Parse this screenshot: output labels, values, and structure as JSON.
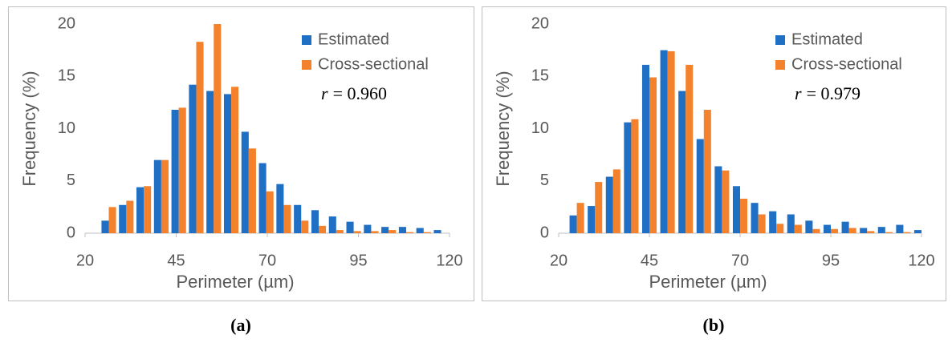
{
  "chart_data": [
    {
      "type": "bar",
      "caption": "(a)",
      "xlabel": "Perimeter (µm)",
      "ylabel": "Frequency (%)",
      "xlim": [
        20,
        120
      ],
      "xticks": [
        20,
        45,
        70,
        95,
        120
      ],
      "ylim": [
        0,
        20
      ],
      "yticks": [
        0,
        5,
        10,
        15,
        20
      ],
      "legend": "top-right",
      "annotation": {
        "symbol": "r",
        "text": "= 0.960"
      },
      "x": [
        26.5,
        31.3,
        36.1,
        40.9,
        45.7,
        50.5,
        55.3,
        60.1,
        64.9,
        69.7,
        74.5,
        79.3,
        84.1,
        88.9,
        93.7,
        98.5,
        103.3,
        108.1,
        112.9,
        117.7
      ],
      "series": [
        {
          "name": "Estimated",
          "color": "#1f6fc5",
          "values": [
            1.2,
            2.7,
            4.4,
            7.0,
            11.8,
            14.2,
            13.6,
            13.3,
            9.7,
            6.7,
            4.7,
            2.7,
            2.2,
            1.6,
            1.1,
            0.8,
            0.6,
            0.6,
            0.5,
            0.3
          ]
        },
        {
          "name": "Cross-sectional",
          "color": "#f4812c",
          "values": [
            2.5,
            3.1,
            4.5,
            7.0,
            12.0,
            18.3,
            20.0,
            14.0,
            8.1,
            4.0,
            2.7,
            1.2,
            0.7,
            0.3,
            0.2,
            0.2,
            0.3,
            0.1,
            0.1,
            0
          ]
        }
      ]
    },
    {
      "type": "bar",
      "caption": "(b)",
      "xlabel": "Perimeter (µm)",
      "ylabel": "Frequency (%)",
      "xlim": [
        20,
        120
      ],
      "xticks": [
        20,
        45,
        70,
        95,
        120
      ],
      "ylim": [
        0,
        20
      ],
      "yticks": [
        0,
        5,
        10,
        15,
        20
      ],
      "legend": "top-right",
      "annotation": {
        "symbol": "r",
        "text": "= 0.979"
      },
      "x": [
        25,
        30,
        35,
        40,
        45,
        50,
        55,
        60,
        65,
        70,
        75,
        80,
        85,
        90,
        95,
        100,
        105,
        110,
        115,
        120
      ],
      "series": [
        {
          "name": "Estimated",
          "color": "#1f6fc5",
          "values": [
            1.7,
            2.6,
            5.4,
            10.6,
            16.1,
            17.5,
            13.6,
            9.0,
            6.4,
            4.5,
            2.9,
            2.1,
            1.8,
            1.2,
            0.8,
            1.1,
            0.5,
            0.6,
            0.8,
            0.3
          ]
        },
        {
          "name": "Cross-sectional",
          "color": "#f4812c",
          "values": [
            2.9,
            4.9,
            6.1,
            10.9,
            14.9,
            17.4,
            16.1,
            11.8,
            6.0,
            3.3,
            1.8,
            0.9,
            0.8,
            0.4,
            0.4,
            0.5,
            0.2,
            0.1,
            0.1,
            0
          ]
        }
      ]
    }
  ]
}
